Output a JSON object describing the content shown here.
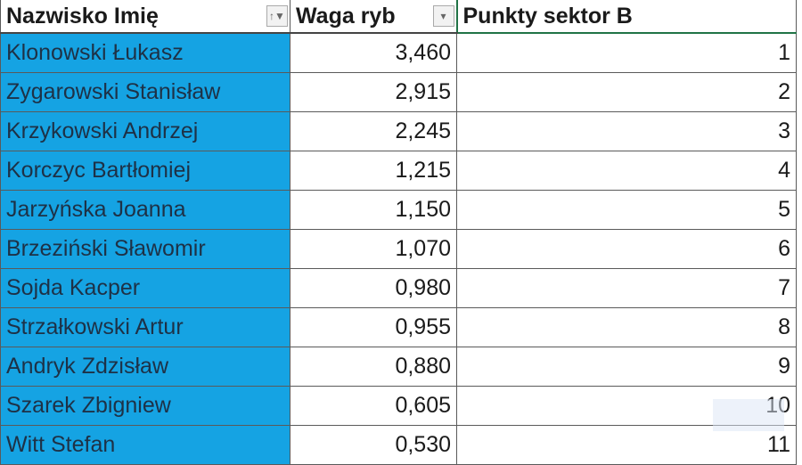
{
  "headers": [
    "Nazwisko Imię",
    "Waga ryb",
    "Punkty sektor B"
  ],
  "icons": {
    "filter_active": "filter-sort-icon",
    "filter": "dropdown-arrow-icon"
  },
  "colors": {
    "name_fill": "#15a3e3"
  },
  "rows": [
    {
      "name": "Klonowski Łukasz",
      "weight": "3,460",
      "points": "1"
    },
    {
      "name": "Zygarowski Stanisław",
      "weight": "2,915",
      "points": "2"
    },
    {
      "name": "Krzykowski Andrzej",
      "weight": "2,245",
      "points": "3"
    },
    {
      "name": "Korczyc Bartłomiej",
      "weight": "1,215",
      "points": "4"
    },
    {
      "name": "Jarzyńska Joanna",
      "weight": "1,150",
      "points": "5"
    },
    {
      "name": "Brzeziński Sławomir",
      "weight": "1,070",
      "points": "6"
    },
    {
      "name": "Sojda Kacper",
      "weight": "0,980",
      "points": "7"
    },
    {
      "name": "Strzałkowski Artur",
      "weight": "0,955",
      "points": "8"
    },
    {
      "name": "Andryk Zdzisław",
      "weight": "0,880",
      "points": "9"
    },
    {
      "name": "Szarek Zbigniew",
      "weight": "0,605",
      "points": "10"
    },
    {
      "name": "Witt Stefan",
      "weight": "0,530",
      "points": "11"
    }
  ]
}
